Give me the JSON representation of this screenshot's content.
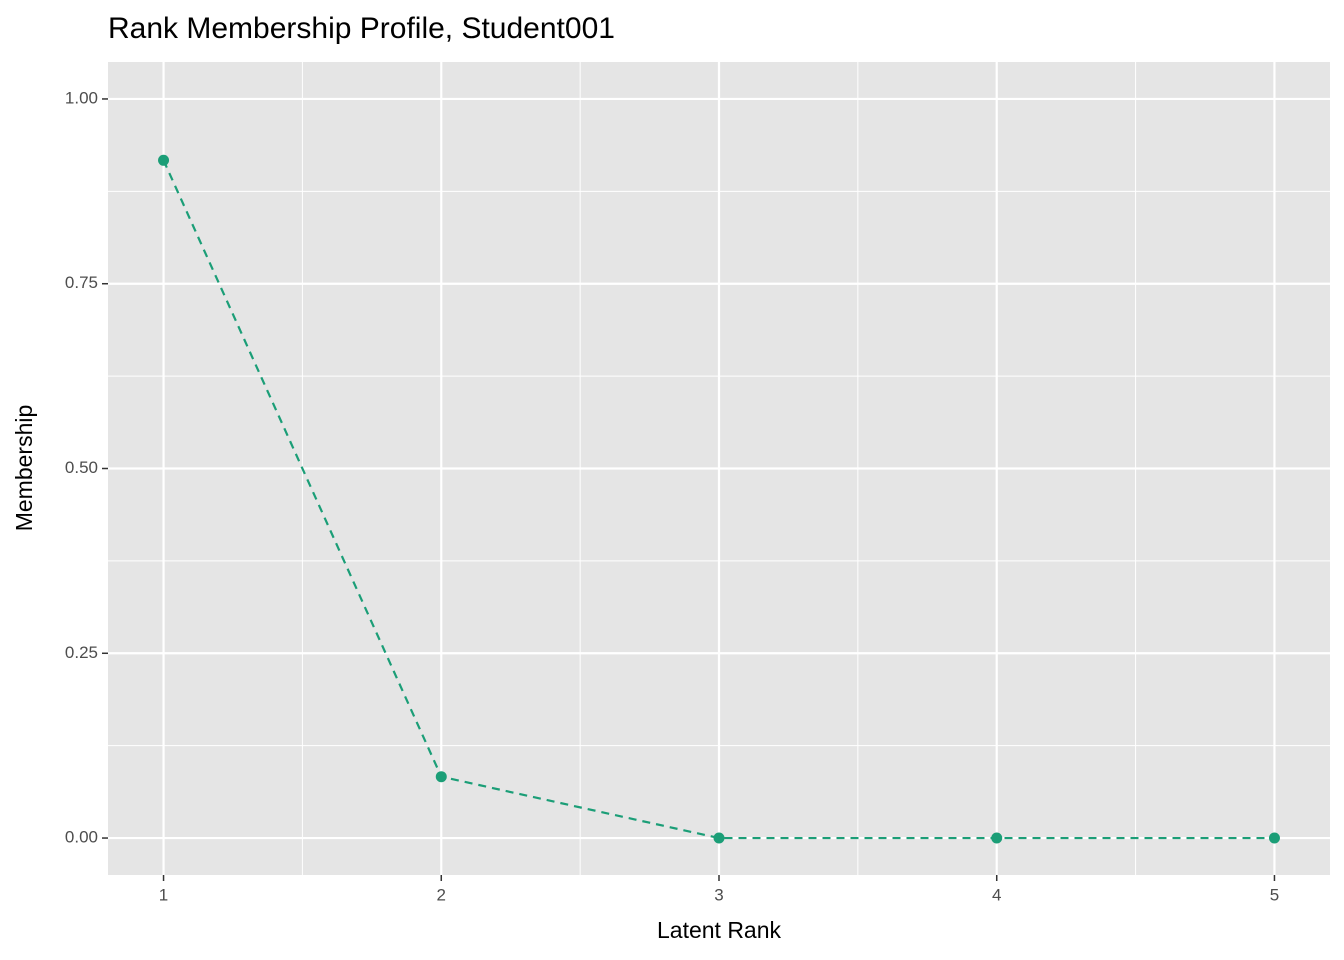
{
  "chart_data": {
    "type": "line",
    "title": "Rank Membership Profile, Student001",
    "x_label": "Latent Rank",
    "y_label": "Membership",
    "x": [
      1,
      2,
      3,
      4,
      5
    ],
    "series": [
      {
        "color": "#1b9e77",
        "values": [
          0.917,
          0.083,
          0,
          0,
          0
        ]
      }
    ],
    "xlim": [
      0.8,
      5.2
    ],
    "ylim": [
      -0.05,
      1.05
    ],
    "xticks": [
      1,
      2,
      3,
      4,
      5
    ],
    "yticks": [
      {
        "value": 0,
        "label": "0.00"
      },
      {
        "value": 0.25,
        "label": "0.25"
      },
      {
        "value": 0.5,
        "label": "0.50"
      },
      {
        "value": 0.75,
        "label": "0.75"
      },
      {
        "value": 1,
        "label": "1.00"
      }
    ],
    "grid": true,
    "line_style": "dashed"
  }
}
